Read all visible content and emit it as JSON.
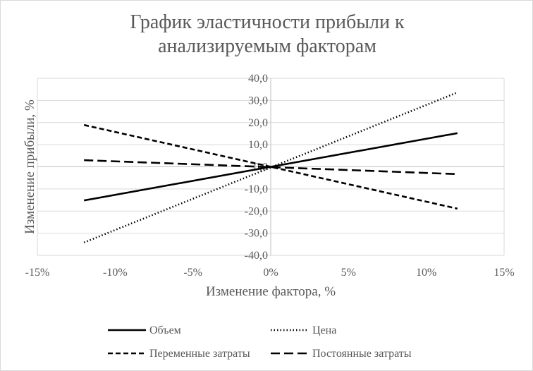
{
  "chart_data": {
    "type": "line",
    "title": "График эластичности прибыли к\nанализируемым  факторам",
    "xlabel": "Изменение фактора, %",
    "ylabel": "Изменение прибыли, %",
    "xlim": [
      -0.15,
      0.15
    ],
    "ylim": [
      -40,
      40
    ],
    "x_ticks": [
      -0.15,
      -0.1,
      -0.05,
      0,
      0.05,
      0.1,
      0.15
    ],
    "x_tick_labels": [
      "-15%",
      "-10%",
      "-5%",
      "0%",
      "5%",
      "10%",
      "15%"
    ],
    "y_ticks": [
      40,
      30,
      20,
      10,
      0,
      -10,
      -20,
      -30,
      -40
    ],
    "y_tick_labels": [
      "40,0",
      "30,0",
      "20,0",
      "10,0",
      "0,0",
      "-10,0",
      "-20,0",
      "-30,0",
      "-40,0"
    ],
    "grid": "horizontal",
    "legend_position": "bottom",
    "series": [
      {
        "name": "Объем",
        "style": "solid",
        "color": "#000000",
        "x": [
          -0.12,
          0.12
        ],
        "y": [
          -15.2,
          15.2
        ]
      },
      {
        "name": "Цена",
        "style": "dotted",
        "color": "#000000",
        "x": [
          -0.12,
          0.12
        ],
        "y": [
          -34.2,
          33.6
        ]
      },
      {
        "name": "Переменные затраты",
        "style": "short-dash",
        "color": "#000000",
        "x": [
          -0.12,
          0.12
        ],
        "y": [
          18.9,
          -18.9
        ]
      },
      {
        "name": "Постоянные затраты",
        "style": "long-dash",
        "color": "#000000",
        "x": [
          -0.12,
          0.12
        ],
        "y": [
          3.0,
          -3.3
        ]
      }
    ]
  }
}
